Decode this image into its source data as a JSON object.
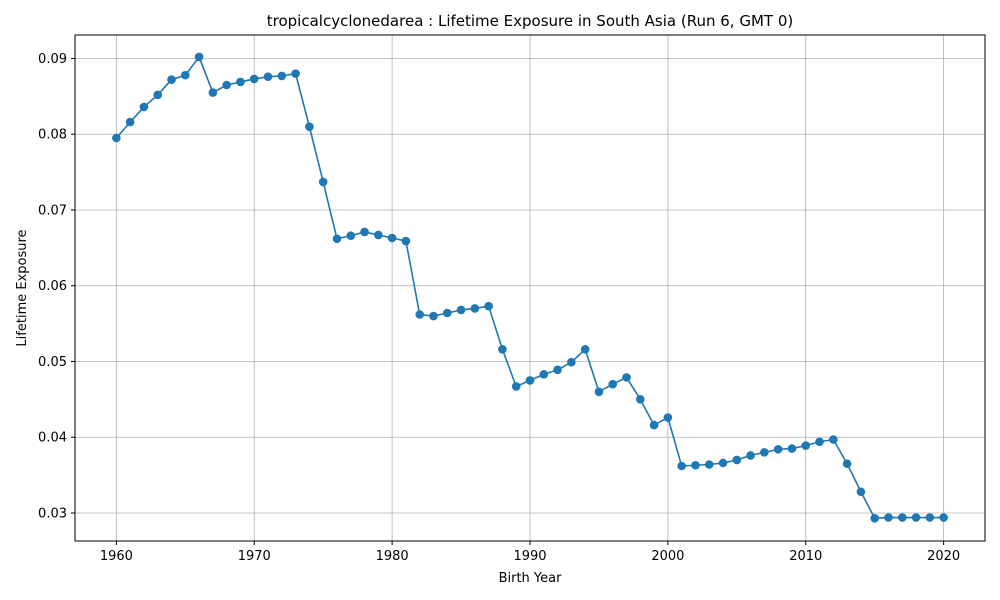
{
  "chart_data": {
    "type": "line",
    "title": "tropicalcyclonedarea : Lifetime Exposure in South Asia (Run 6, GMT 0)",
    "xlabel": "Birth Year",
    "ylabel": "Lifetime Exposure",
    "xlim": [
      1957,
      2023
    ],
    "ylim": [
      0.0263,
      0.0931
    ],
    "xticks": [
      1960,
      1970,
      1980,
      1990,
      2000,
      2010,
      2020
    ],
    "yticks": [
      0.03,
      0.04,
      0.05,
      0.06,
      0.07,
      0.08,
      0.09
    ],
    "ytick_labels": [
      "0.03",
      "0.04",
      "0.05",
      "0.06",
      "0.07",
      "0.08",
      "0.09"
    ],
    "grid": true,
    "color": "#1f77b4",
    "marker": "circle",
    "x": [
      1960,
      1961,
      1962,
      1963,
      1964,
      1965,
      1966,
      1967,
      1968,
      1969,
      1970,
      1971,
      1972,
      1973,
      1974,
      1975,
      1976,
      1977,
      1978,
      1979,
      1980,
      1981,
      1982,
      1983,
      1984,
      1985,
      1986,
      1987,
      1988,
      1989,
      1990,
      1991,
      1992,
      1993,
      1994,
      1995,
      1996,
      1997,
      1998,
      1999,
      2000,
      2001,
      2002,
      2003,
      2004,
      2005,
      2006,
      2007,
      2008,
      2009,
      2010,
      2011,
      2012,
      2013,
      2014,
      2015,
      2016,
      2017,
      2018,
      2019,
      2020
    ],
    "y": [
      0.0795,
      0.0816,
      0.0836,
      0.0852,
      0.0872,
      0.0878,
      0.0902,
      0.0855,
      0.0865,
      0.0869,
      0.0873,
      0.0876,
      0.0877,
      0.088,
      0.081,
      0.0737,
      0.0662,
      0.0666,
      0.0671,
      0.0667,
      0.0663,
      0.0659,
      0.0562,
      0.056,
      0.0564,
      0.0568,
      0.057,
      0.0573,
      0.0516,
      0.0467,
      0.0475,
      0.0483,
      0.0489,
      0.0499,
      0.0516,
      0.046,
      0.047,
      0.0479,
      0.045,
      0.0416,
      0.0426,
      0.0362,
      0.0363,
      0.0364,
      0.0366,
      0.037,
      0.0376,
      0.038,
      0.0384,
      0.0385,
      0.0389,
      0.0394,
      0.0397,
      0.0365,
      0.0328,
      0.0293,
      0.0294,
      0.0294,
      0.0294,
      0.0294,
      0.0294
    ]
  }
}
